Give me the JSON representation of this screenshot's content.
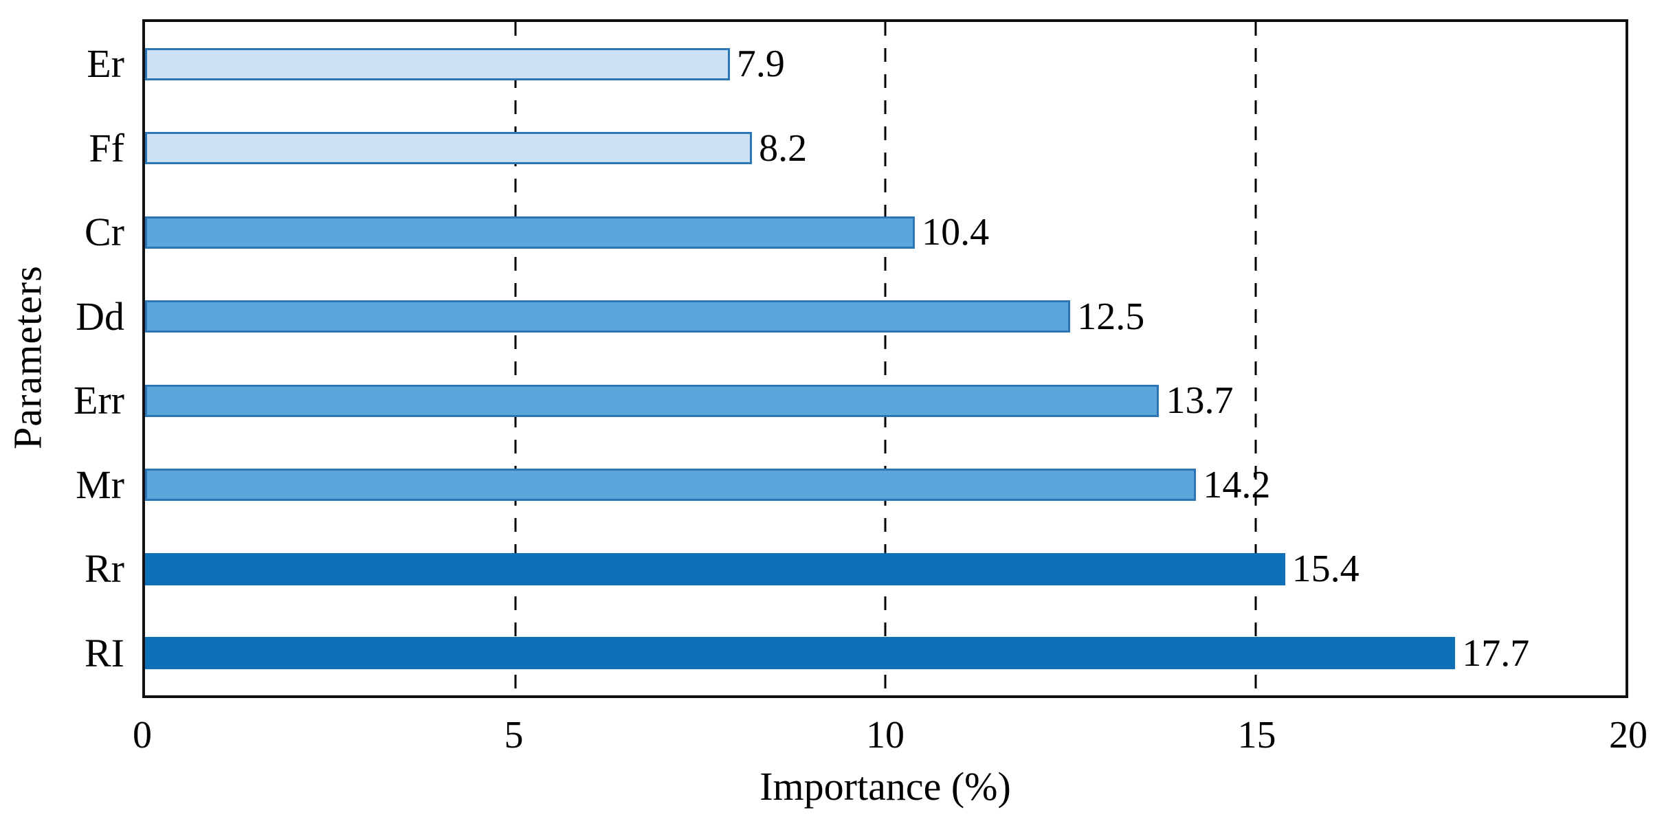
{
  "chart_data": {
    "type": "bar",
    "orientation": "horizontal",
    "title": "",
    "xlabel": "Importance (%)",
    "ylabel": "Parameters",
    "xlim": [
      0,
      20
    ],
    "xticks": [
      {
        "value": 0,
        "label": "0"
      },
      {
        "value": 5,
        "label": "5"
      },
      {
        "value": 10,
        "label": "10"
      },
      {
        "value": 15,
        "label": "15"
      },
      {
        "value": 20,
        "label": "20"
      }
    ],
    "gridlines": {
      "x_values": [
        5,
        10,
        15
      ],
      "style": "dashed",
      "color": "#000000"
    },
    "legend": "none",
    "categories": [
      "Er",
      "Ff",
      "Cr",
      "Dd",
      "Err",
      "Mr",
      "Rr",
      "RI"
    ],
    "values": [
      7.9,
      8.2,
      10.4,
      12.5,
      13.7,
      14.2,
      15.4,
      17.7
    ],
    "bars": [
      {
        "label": "Er",
        "value": 7.9,
        "value_label": "7.9",
        "fill": "#cde1f5",
        "border": "#2e75b6"
      },
      {
        "label": "Ff",
        "value": 8.2,
        "value_label": "8.2",
        "fill": "#cde1f5",
        "border": "#2e75b6"
      },
      {
        "label": "Cr",
        "value": 10.4,
        "value_label": "10.4",
        "fill": "#5ba7dc",
        "border": "#2e75b6"
      },
      {
        "label": "Dd",
        "value": 12.5,
        "value_label": "12.5",
        "fill": "#5ba7dc",
        "border": "#2e75b6"
      },
      {
        "label": "Err",
        "value": 13.7,
        "value_label": "13.7",
        "fill": "#5ba7dc",
        "border": "#2e75b6"
      },
      {
        "label": "Mr",
        "value": 14.2,
        "value_label": "14.2",
        "fill": "#5ba7dc",
        "border": "#2e75b6"
      },
      {
        "label": "Rr",
        "value": 15.4,
        "value_label": "15.4",
        "fill": "#0f70b8",
        "border": "#0f70b8"
      },
      {
        "label": "RI",
        "value": 17.7,
        "value_label": "17.7",
        "fill": "#0f70b8",
        "border": "#0f70b8"
      }
    ],
    "colors": {
      "light_fill": "#cde1f5",
      "medium_fill": "#5ba7dc",
      "dark_fill": "#0f70b8",
      "bar_border": "#2e75b6",
      "axis": "#111111",
      "text": "#000000"
    }
  }
}
